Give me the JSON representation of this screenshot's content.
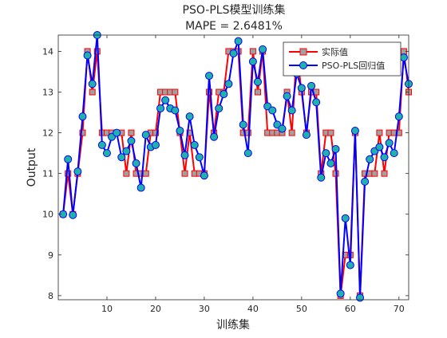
{
  "chart_data": {
    "type": "line",
    "title": "PSO-PLS模型训练集",
    "subtitle": "MAPE = 2.6481%",
    "xlabel": "训练集",
    "ylabel": "Output",
    "xlim": [
      0,
      72
    ],
    "ylim": [
      7.9,
      14.4
    ],
    "xticks": [
      10,
      20,
      30,
      40,
      50,
      60,
      70
    ],
    "yticks": [
      8,
      9,
      10,
      11,
      12,
      13,
      14
    ],
    "grid": false,
    "legend_position": "top-right",
    "x": [
      1,
      2,
      3,
      4,
      5,
      6,
      7,
      8,
      9,
      10,
      11,
      12,
      13,
      14,
      15,
      16,
      17,
      18,
      19,
      20,
      21,
      22,
      23,
      24,
      25,
      26,
      27,
      28,
      29,
      30,
      31,
      32,
      33,
      34,
      35,
      36,
      37,
      38,
      39,
      40,
      41,
      42,
      43,
      44,
      45,
      46,
      47,
      48,
      49,
      50,
      51,
      52,
      53,
      54,
      55,
      56,
      57,
      58,
      59,
      60,
      61,
      62,
      63,
      64,
      65,
      66,
      67,
      68,
      69,
      70,
      71,
      72
    ],
    "series": [
      {
        "name": "实际值",
        "color": "#FF0000",
        "marker": "square",
        "marker_fill": "#A0A0A0",
        "values": [
          10,
          11,
          10,
          11,
          12,
          14,
          13,
          14,
          12,
          12,
          12,
          12,
          12,
          11,
          12,
          11,
          11,
          11,
          12,
          12,
          13,
          13,
          13,
          13,
          12,
          11,
          12,
          11,
          11,
          11,
          13,
          12,
          13,
          13,
          14,
          14,
          14,
          12,
          12,
          14,
          13,
          14,
          12,
          12,
          12,
          12,
          13,
          12,
          14,
          13,
          12,
          13,
          13,
          11,
          12,
          12,
          11,
          8,
          9,
          9,
          12,
          8,
          11,
          11,
          11,
          12,
          11,
          12,
          12,
          12,
          14,
          13
        ]
      },
      {
        "name": "PSO-PLS回归值",
        "color": "#0000FF",
        "marker": "circle",
        "marker_fill": "#20B2AA",
        "values": [
          10.0,
          11.35,
          9.98,
          11.05,
          12.4,
          13.9,
          13.2,
          14.4,
          11.7,
          11.5,
          11.9,
          12.0,
          11.4,
          11.55,
          11.8,
          11.25,
          10.65,
          11.95,
          11.65,
          11.7,
          12.6,
          12.8,
          12.6,
          12.55,
          12.05,
          11.45,
          12.4,
          11.7,
          11.4,
          10.95,
          13.4,
          11.9,
          12.6,
          12.95,
          13.2,
          13.95,
          14.25,
          12.2,
          11.5,
          13.75,
          13.25,
          14.05,
          12.65,
          12.55,
          12.2,
          12.1,
          12.9,
          12.55,
          13.45,
          13.1,
          11.95,
          13.15,
          12.75,
          10.9,
          11.5,
          11.25,
          11.6,
          8.05,
          9.9,
          8.75,
          12.05,
          7.95,
          10.8,
          11.35,
          11.55,
          11.65,
          11.4,
          11.75,
          11.5,
          12.4,
          13.85,
          13.2
        ]
      }
    ]
  }
}
